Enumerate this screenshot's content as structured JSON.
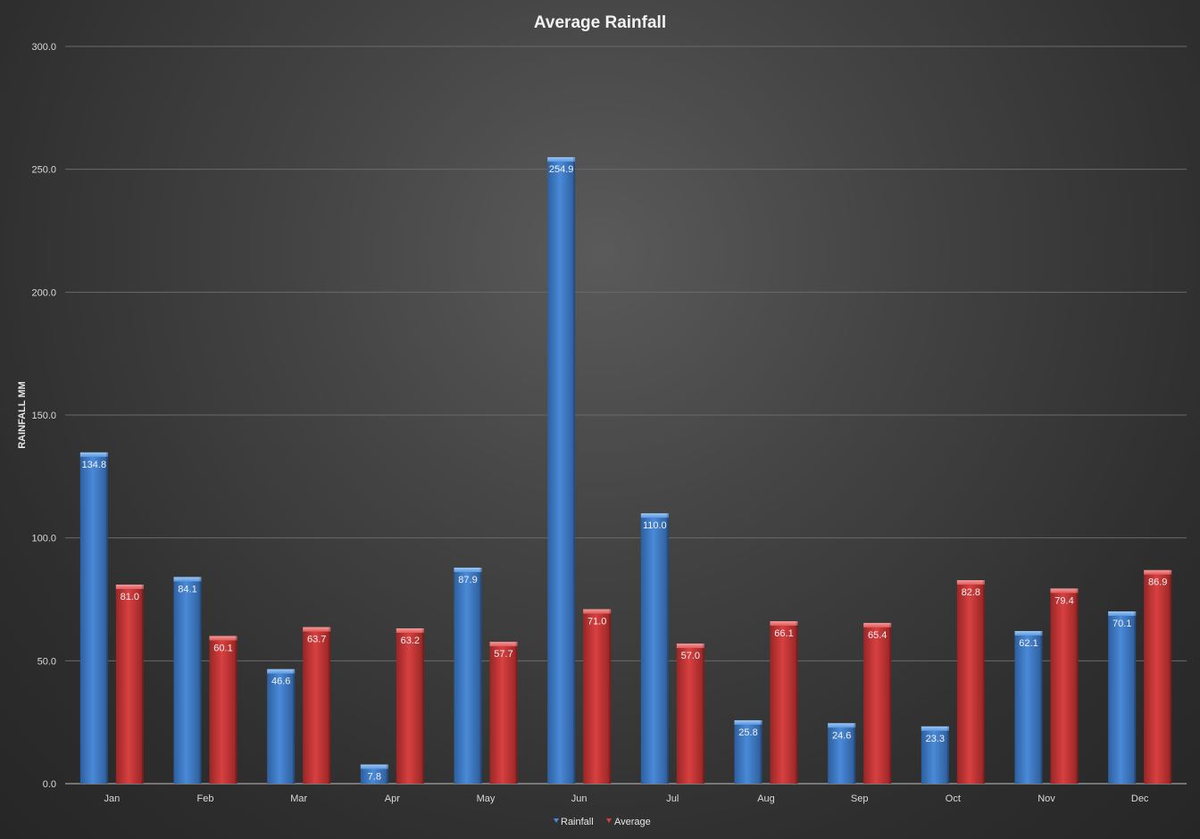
{
  "chart_data": {
    "type": "bar",
    "title": "Average Rainfall",
    "xlabel": "",
    "ylabel": "RAINFALL MM",
    "ylim": [
      0,
      300
    ],
    "yticks": [
      0,
      50,
      100,
      150,
      200,
      250,
      300
    ],
    "ytick_labels": [
      "0.0",
      "50.0",
      "100.0",
      "150.0",
      "200.0",
      "250.0",
      "300.0"
    ],
    "grid": true,
    "legend_position": "bottom",
    "categories": [
      "Jan",
      "Feb",
      "Mar",
      "Apr",
      "May",
      "Jun",
      "Jul",
      "Aug",
      "Sep",
      "Oct",
      "Nov",
      "Dec"
    ],
    "series": [
      {
        "name": "Rainfall",
        "color": "#3f7fd0",
        "values": [
          134.8,
          84.1,
          46.6,
          7.8,
          87.9,
          254.9,
          110.0,
          25.8,
          24.6,
          23.3,
          62.1,
          70.1
        ],
        "labels": [
          "134.8",
          "84.1",
          "46.6",
          "7.8",
          "87.9",
          "254.9",
          "110.0",
          "25.8",
          "24.6",
          "23.3",
          "62.1",
          "70.1"
        ]
      },
      {
        "name": "Average",
        "color": "#c93535",
        "values": [
          81.0,
          60.1,
          63.7,
          63.2,
          57.7,
          71.0,
          57.0,
          66.1,
          65.4,
          82.8,
          79.4,
          86.9
        ],
        "labels": [
          "81.0",
          "60.1",
          "63.7",
          "63.2",
          "57.7",
          "71.0",
          "57.0",
          "66.1",
          "65.4",
          "82.8",
          "79.4",
          "86.9"
        ]
      }
    ]
  }
}
